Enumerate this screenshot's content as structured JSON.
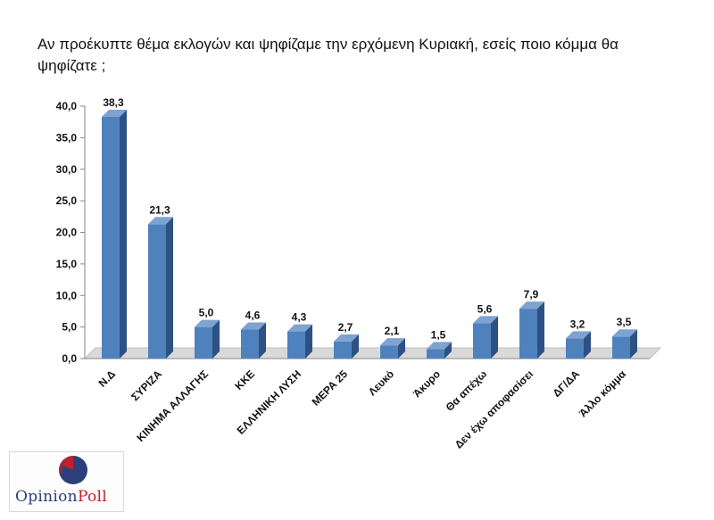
{
  "title": "Αν προέκυπτε θέμα εκλογών και ψηφίζαμε την ερχόμενη Κυριακή, εσείς ποιο κόμμα θα ψηφίζατε ;",
  "logo": {
    "text_first": "Opinion",
    "text_second": "Poll",
    "colors": {
      "navy": "#2b3f7a",
      "red": "#c0202a"
    }
  },
  "chart_data": {
    "type": "bar",
    "categories": [
      "Ν.Δ",
      "ΣΥΡΙΖΑ",
      "ΚΙΝΗΜΑ ΑΛΛΑΓΗΣ",
      "ΚΚΕ",
      "ΕΛΛΗΝΙΚΗ ΛΥΣΗ",
      "ΜΕΡΑ 25",
      "Λευκό",
      "Άκυρο",
      "Θα απέχω",
      "Δεν έχω αποφασίσει",
      "ΔΓ/ΔΑ",
      "Άλλο κόμμα"
    ],
    "values": [
      38.3,
      21.3,
      5.0,
      4.6,
      4.3,
      2.7,
      2.1,
      1.5,
      5.6,
      7.9,
      3.2,
      3.5
    ],
    "value_labels": [
      "38,3",
      "21,3",
      "5,0",
      "4,6",
      "4,3",
      "2,7",
      "2,1",
      "1,5",
      "5,6",
      "7,9",
      "3,2",
      "3,5"
    ],
    "yticks": [
      "0,0",
      "5,0",
      "10,0",
      "15,0",
      "20,0",
      "25,0",
      "30,0",
      "35,0",
      "40,0"
    ],
    "ylim": [
      0,
      40
    ],
    "grid": false,
    "legend": "none",
    "colors": {
      "bar_front": "#4f81bd",
      "bar_side": "#2c5284",
      "bar_top": "#7fa3d1",
      "floor": "#d9d9d9"
    }
  }
}
